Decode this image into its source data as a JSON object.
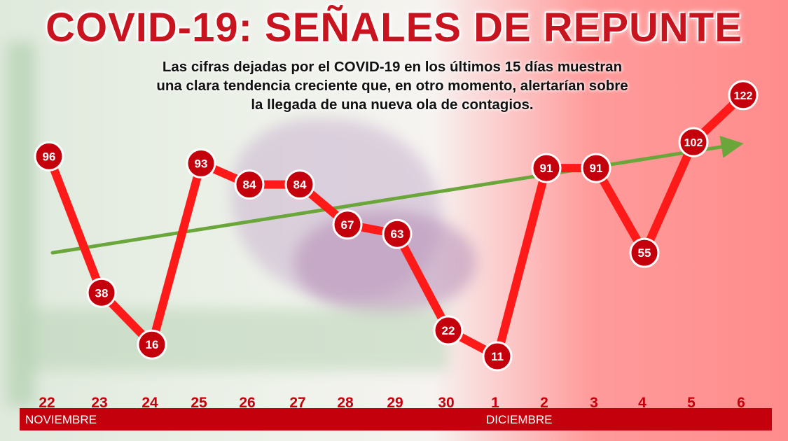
{
  "header": {
    "title": "COVID-19: SEÑALES DE REPUNTE",
    "subtitle_lines": [
      "Las cifras dejadas por el COVID-19 en los últimos 15 días muestran",
      "una clara tendencia creciente que, en otro momento, alertarían sobre",
      "la llegada de una nueva ola de contagios."
    ]
  },
  "colors": {
    "title": "#c8141e",
    "line": "#ff1a1a",
    "marker": "#c4000c",
    "trend": "#6aa63a",
    "month_bar": "#c4000c"
  },
  "months": {
    "left": "NOVIEMBRE",
    "right": "DICIEMBRE"
  },
  "chart_data": {
    "type": "line",
    "title": "COVID-19: SEÑALES DE REPUNTE",
    "categories": [
      "22",
      "23",
      "24",
      "25",
      "26",
      "27",
      "28",
      "29",
      "30",
      "1",
      "2",
      "3",
      "4",
      "5",
      "6"
    ],
    "series": [
      {
        "values": [
          96,
          38,
          16,
          93,
          84,
          84,
          67,
          63,
          22,
          11,
          91,
          91,
          55,
          102,
          122
        ]
      }
    ],
    "trend": {
      "start": 55,
      "end": 100
    },
    "ylim": [
      0,
      130
    ],
    "grid": false,
    "legend": "none"
  }
}
